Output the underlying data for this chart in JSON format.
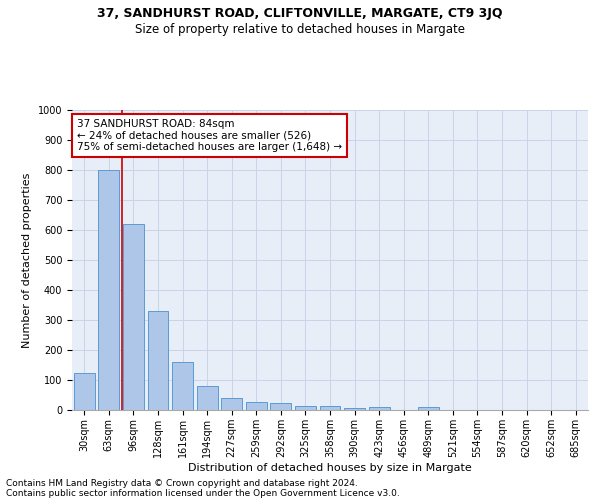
{
  "title1": "37, SANDHURST ROAD, CLIFTONVILLE, MARGATE, CT9 3JQ",
  "title2": "Size of property relative to detached houses in Margate",
  "xlabel": "Distribution of detached houses by size in Margate",
  "ylabel": "Number of detached properties",
  "footnote1": "Contains HM Land Registry data © Crown copyright and database right 2024.",
  "footnote2": "Contains public sector information licensed under the Open Government Licence v3.0.",
  "annotation_line1": "37 SANDHURST ROAD: 84sqm",
  "annotation_line2": "← 24% of detached houses are smaller (526)",
  "annotation_line3": "75% of semi-detached houses are larger (1,648) →",
  "bar_labels": [
    "30sqm",
    "63sqm",
    "96sqm",
    "128sqm",
    "161sqm",
    "194sqm",
    "227sqm",
    "259sqm",
    "292sqm",
    "325sqm",
    "358sqm",
    "390sqm",
    "423sqm",
    "456sqm",
    "489sqm",
    "521sqm",
    "554sqm",
    "587sqm",
    "620sqm",
    "652sqm",
    "685sqm"
  ],
  "bar_values": [
    125,
    800,
    620,
    330,
    160,
    80,
    40,
    28,
    25,
    15,
    15,
    8,
    10,
    0,
    10,
    0,
    0,
    0,
    0,
    0,
    0
  ],
  "bar_color": "#aec6e8",
  "bar_edge_color": "#5b9bd5",
  "red_line_x": 1.55,
  "ylim": [
    0,
    1000
  ],
  "yticks": [
    0,
    100,
    200,
    300,
    400,
    500,
    600,
    700,
    800,
    900,
    1000
  ],
  "grid_color": "#c8d4e8",
  "bg_color": "#e8eef8",
  "annotation_box_color": "#cc0000",
  "title1_fontsize": 9,
  "title2_fontsize": 8.5,
  "ylabel_fontsize": 8,
  "xlabel_fontsize": 8,
  "tick_fontsize": 7,
  "footnote_fontsize": 6.5,
  "annotation_fontsize": 7.5
}
